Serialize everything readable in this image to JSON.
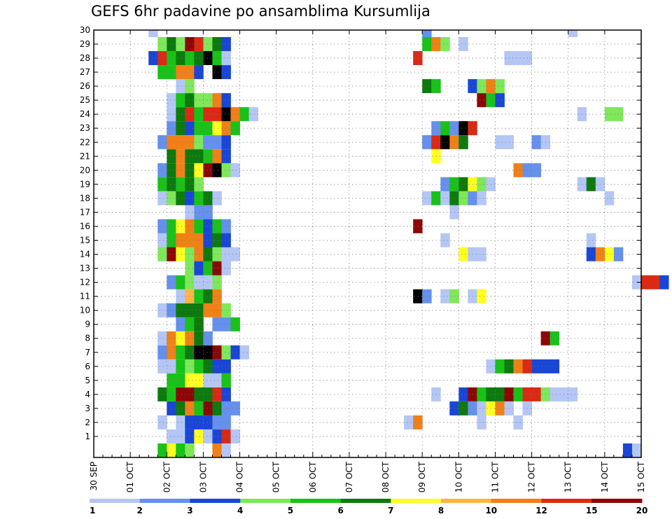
{
  "chart_data": {
    "type": "heatmap",
    "title": "GEFS 6hr padavine po ansamblima Kursumlija",
    "y_ticks": [
      "1",
      "2",
      "3",
      "4",
      "5",
      "6",
      "7",
      "8",
      "9",
      "10",
      "11",
      "12",
      "13",
      "14",
      "15",
      "16",
      "17",
      "18",
      "19",
      "20",
      "21",
      "22",
      "23",
      "24",
      "25",
      "26",
      "27",
      "28",
      "29",
      "30"
    ],
    "x_ticks": [
      "30 SEP",
      "01 OCT",
      "02 OCT",
      "03 OCT",
      "04 OCT",
      "05 OCT",
      "06 OCT",
      "07 OCT",
      "08 OCT",
      "09 OCT",
      "10 OCT",
      "11 OCT",
      "12 OCT",
      "13 OCT",
      "14 OCT",
      "15 OCT"
    ],
    "steps_per_day": 4,
    "grid": true,
    "colorbar": {
      "tick_labels": [
        "1",
        "2",
        "3",
        "4",
        "5",
        "6",
        "7",
        "8",
        "10",
        "12",
        "15",
        "20"
      ],
      "colors": [
        "#b4c6f5",
        "#6590ec",
        "#1a46d6",
        "#7ee85a",
        "#18c218",
        "#0d7a0d",
        "#ffff22",
        "#ffb444",
        "#f08018",
        "#da2a14",
        "#8c0606"
      ]
    },
    "members": {
      "30": [
        [
          6,
          1
        ],
        [
          36,
          2
        ],
        [
          52,
          1
        ]
      ],
      "29": [
        [
          7,
          4
        ],
        [
          8,
          6
        ],
        [
          9,
          4
        ],
        [
          10,
          11
        ],
        [
          11,
          10
        ],
        [
          12,
          4
        ],
        [
          13,
          6
        ],
        [
          14,
          3
        ],
        [
          36,
          5
        ],
        [
          37,
          9
        ],
        [
          38,
          4
        ],
        [
          40,
          1
        ]
      ],
      "28": [
        [
          6,
          3
        ],
        [
          7,
          10
        ],
        [
          8,
          5
        ],
        [
          9,
          6
        ],
        [
          10,
          5
        ],
        [
          11,
          6
        ],
        [
          12,
          12
        ],
        [
          13,
          5
        ],
        [
          14,
          1
        ],
        [
          35,
          10
        ],
        [
          45,
          1
        ],
        [
          46,
          1
        ],
        [
          47,
          1
        ]
      ],
      "27": [
        [
          7,
          5
        ],
        [
          8,
          5
        ],
        [
          9,
          9
        ],
        [
          10,
          9
        ],
        [
          11,
          3
        ],
        [
          13,
          12
        ],
        [
          14,
          3
        ]
      ],
      "26": [
        [
          9,
          1
        ],
        [
          10,
          4
        ],
        [
          36,
          6
        ],
        [
          37,
          5
        ],
        [
          41,
          3
        ],
        [
          42,
          4
        ],
        [
          43,
          9
        ],
        [
          44,
          4
        ]
      ],
      "25": [
        [
          8,
          1
        ],
        [
          9,
          5
        ],
        [
          10,
          6
        ],
        [
          11,
          4
        ],
        [
          12,
          4
        ],
        [
          13,
          9
        ],
        [
          14,
          3
        ],
        [
          42,
          11
        ],
        [
          43,
          5
        ],
        [
          44,
          3
        ]
      ],
      "24": [
        [
          8,
          1
        ],
        [
          9,
          6
        ],
        [
          10,
          10
        ],
        [
          11,
          5
        ],
        [
          12,
          10
        ],
        [
          13,
          10
        ],
        [
          14,
          12
        ],
        [
          15,
          9
        ],
        [
          16,
          5
        ],
        [
          17,
          1
        ],
        [
          53,
          1
        ],
        [
          56,
          4
        ],
        [
          57,
          4
        ]
      ],
      "23": [
        [
          8,
          2
        ],
        [
          9,
          6
        ],
        [
          10,
          3
        ],
        [
          11,
          5
        ],
        [
          12,
          5
        ],
        [
          13,
          7
        ],
        [
          14,
          9
        ],
        [
          15,
          5
        ],
        [
          37,
          2
        ],
        [
          38,
          5
        ],
        [
          39,
          2
        ],
        [
          40,
          12
        ],
        [
          41,
          10
        ]
      ],
      "22": [
        [
          7,
          2
        ],
        [
          8,
          9
        ],
        [
          9,
          9
        ],
        [
          10,
          9
        ],
        [
          11,
          4
        ],
        [
          12,
          2
        ],
        [
          13,
          2
        ],
        [
          14,
          3
        ],
        [
          36,
          2
        ],
        [
          37,
          10
        ],
        [
          38,
          12
        ],
        [
          39,
          9
        ],
        [
          40,
          6
        ],
        [
          44,
          1
        ],
        [
          45,
          1
        ],
        [
          48,
          2
        ],
        [
          49,
          1
        ]
      ],
      "21": [
        [
          8,
          6
        ],
        [
          9,
          9
        ],
        [
          10,
          6
        ],
        [
          11,
          6
        ],
        [
          12,
          5
        ],
        [
          13,
          9
        ],
        [
          14,
          3
        ],
        [
          37,
          7
        ]
      ],
      "20": [
        [
          7,
          2
        ],
        [
          8,
          6
        ],
        [
          9,
          9
        ],
        [
          10,
          6
        ],
        [
          11,
          7
        ],
        [
          12,
          11
        ],
        [
          13,
          12
        ],
        [
          14,
          4
        ],
        [
          15,
          1
        ],
        [
          46,
          9
        ],
        [
          47,
          2
        ],
        [
          48,
          2
        ]
      ],
      "19": [
        [
          7,
          5
        ],
        [
          8,
          6
        ],
        [
          9,
          5
        ],
        [
          10,
          6
        ],
        [
          11,
          4
        ],
        [
          38,
          2
        ],
        [
          39,
          5
        ],
        [
          40,
          6
        ],
        [
          41,
          7
        ],
        [
          42,
          4
        ],
        [
          43,
          1
        ],
        [
          53,
          1
        ],
        [
          54,
          6
        ],
        [
          55,
          1
        ]
      ],
      "18": [
        [
          7,
          1
        ],
        [
          8,
          4
        ],
        [
          9,
          6
        ],
        [
          10,
          3
        ],
        [
          11,
          5
        ],
        [
          12,
          6
        ],
        [
          13,
          1
        ],
        [
          36,
          1
        ],
        [
          37,
          5
        ],
        [
          38,
          1
        ],
        [
          39,
          6
        ],
        [
          40,
          4
        ],
        [
          41,
          2
        ],
        [
          42,
          1
        ],
        [
          56,
          1
        ]
      ],
      "17": [
        [
          10,
          1
        ],
        [
          11,
          2
        ],
        [
          12,
          2
        ],
        [
          39,
          1
        ]
      ],
      "16": [
        [
          7,
          2
        ],
        [
          8,
          5
        ],
        [
          9,
          7
        ],
        [
          10,
          9
        ],
        [
          11,
          5
        ],
        [
          12,
          3
        ],
        [
          13,
          5
        ],
        [
          14,
          2
        ],
        [
          35,
          11
        ]
      ],
      "15": [
        [
          7,
          1
        ],
        [
          8,
          5
        ],
        [
          9,
          9
        ],
        [
          10,
          9
        ],
        [
          11,
          9
        ],
        [
          12,
          3
        ],
        [
          13,
          6
        ],
        [
          14,
          3
        ],
        [
          38,
          1
        ],
        [
          54,
          1
        ]
      ],
      "14": [
        [
          7,
          4
        ],
        [
          8,
          11
        ],
        [
          9,
          7
        ],
        [
          10,
          4
        ],
        [
          11,
          9
        ],
        [
          12,
          6
        ],
        [
          13,
          4
        ],
        [
          14,
          1
        ],
        [
          15,
          1
        ],
        [
          40,
          7
        ],
        [
          41,
          1
        ],
        [
          42,
          1
        ],
        [
          54,
          3
        ],
        [
          55,
          9
        ],
        [
          56,
          7
        ],
        [
          57,
          2
        ]
      ],
      "13": [
        [
          10,
          4
        ],
        [
          11,
          3
        ],
        [
          12,
          5
        ],
        [
          13,
          11
        ],
        [
          14,
          1
        ]
      ],
      "12": [
        [
          8,
          2
        ],
        [
          9,
          5
        ],
        [
          10,
          4
        ],
        [
          11,
          1
        ],
        [
          12,
          1
        ],
        [
          13,
          4
        ],
        [
          59,
          1
        ],
        [
          60,
          10
        ],
        [
          61,
          10
        ],
        [
          62,
          3
        ]
      ],
      "11": [
        [
          9,
          1
        ],
        [
          10,
          8
        ],
        [
          11,
          5
        ],
        [
          12,
          6
        ],
        [
          13,
          9
        ],
        [
          35,
          12
        ],
        [
          36,
          2
        ],
        [
          38,
          1
        ],
        [
          39,
          4
        ],
        [
          41,
          1
        ],
        [
          42,
          7
        ]
      ],
      "10": [
        [
          7,
          1
        ],
        [
          8,
          2
        ],
        [
          9,
          6
        ],
        [
          10,
          6
        ],
        [
          11,
          6
        ],
        [
          12,
          9
        ],
        [
          13,
          9
        ],
        [
          14,
          4
        ]
      ],
      "9": [
        [
          9,
          2
        ],
        [
          10,
          5
        ],
        [
          11,
          6
        ],
        [
          13,
          2
        ],
        [
          14,
          2
        ],
        [
          15,
          5
        ]
      ],
      "8": [
        [
          7,
          1
        ],
        [
          8,
          9
        ],
        [
          9,
          7
        ],
        [
          10,
          9
        ],
        [
          11,
          6
        ],
        [
          12,
          2
        ],
        [
          49,
          11
        ],
        [
          50,
          5
        ]
      ],
      "7": [
        [
          7,
          2
        ],
        [
          8,
          9
        ],
        [
          9,
          5
        ],
        [
          10,
          6
        ],
        [
          11,
          12
        ],
        [
          12,
          12
        ],
        [
          13,
          11
        ],
        [
          14,
          4
        ],
        [
          15,
          3
        ],
        [
          16,
          1
        ]
      ],
      "6": [
        [
          7,
          1
        ],
        [
          8,
          1
        ],
        [
          9,
          5
        ],
        [
          10,
          4
        ],
        [
          11,
          5
        ],
        [
          12,
          6
        ],
        [
          13,
          3
        ],
        [
          14,
          3
        ],
        [
          43,
          1
        ],
        [
          44,
          5
        ],
        [
          45,
          6
        ],
        [
          46,
          9
        ],
        [
          47,
          10
        ],
        [
          48,
          3
        ],
        [
          49,
          3
        ],
        [
          50,
          3
        ]
      ],
      "5": [
        [
          8,
          5
        ],
        [
          9,
          5
        ],
        [
          10,
          7
        ],
        [
          11,
          7
        ],
        [
          12,
          1
        ],
        [
          13,
          1
        ],
        [
          14,
          5
        ]
      ],
      "4": [
        [
          7,
          6
        ],
        [
          8,
          5
        ],
        [
          9,
          11
        ],
        [
          10,
          11
        ],
        [
          11,
          6
        ],
        [
          12,
          6
        ],
        [
          13,
          10
        ],
        [
          14,
          3
        ],
        [
          37,
          1
        ],
        [
          40,
          3
        ],
        [
          41,
          11
        ],
        [
          42,
          5
        ],
        [
          43,
          6
        ],
        [
          44,
          6
        ],
        [
          45,
          11
        ],
        [
          46,
          5
        ],
        [
          47,
          10
        ],
        [
          48,
          10
        ],
        [
          49,
          4
        ],
        [
          50,
          1
        ],
        [
          51,
          1
        ],
        [
          52,
          1
        ]
      ],
      "3": [
        [
          8,
          3
        ],
        [
          9,
          6
        ],
        [
          10,
          9
        ],
        [
          11,
          5
        ],
        [
          12,
          11
        ],
        [
          13,
          6
        ],
        [
          14,
          2
        ],
        [
          15,
          2
        ],
        [
          39,
          3
        ],
        [
          40,
          6
        ],
        [
          41,
          2
        ],
        [
          42,
          1
        ],
        [
          43,
          7
        ],
        [
          44,
          9
        ],
        [
          45,
          1
        ],
        [
          47,
          1
        ]
      ],
      "2": [
        [
          7,
          1
        ],
        [
          9,
          1
        ],
        [
          10,
          3
        ],
        [
          11,
          3
        ],
        [
          12,
          3
        ],
        [
          13,
          2
        ],
        [
          14,
          2
        ],
        [
          34,
          1
        ],
        [
          35,
          9
        ],
        [
          42,
          1
        ],
        [
          46,
          1
        ]
      ],
      "1": [
        [
          8,
          1
        ],
        [
          9,
          1
        ],
        [
          10,
          3
        ],
        [
          11,
          7
        ],
        [
          12,
          1
        ],
        [
          13,
          3
        ],
        [
          14,
          10
        ],
        [
          15,
          1
        ]
      ],
      "0": [
        [
          7,
          5
        ],
        [
          8,
          7
        ],
        [
          9,
          5
        ],
        [
          10,
          4
        ],
        [
          13,
          9
        ],
        [
          14,
          1
        ],
        [
          58,
          3
        ],
        [
          59,
          1
        ]
      ]
    }
  }
}
